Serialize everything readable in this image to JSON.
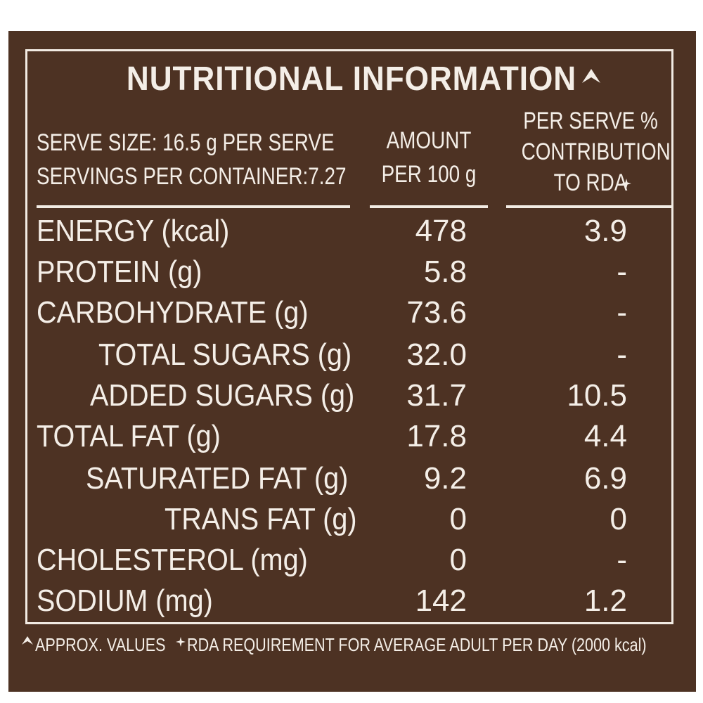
{
  "label": {
    "title": "NUTRITIONAL INFORMATION",
    "serve_size": "SERVE SIZE: 16.5 g PER SERVE",
    "servings": "SERVINGS PER CONTAINER:7.27",
    "col_amount_line1": "AMOUNT",
    "col_amount_line2": "PER 100 g",
    "col_rda_line1": "PER SERVE %",
    "col_rda_line2": "CONTRIBUTION",
    "col_rda_line3": "TO RDA",
    "rows": [
      {
        "name": "ENERGY (kcal)",
        "amount": "478",
        "rda": "3.9"
      },
      {
        "name": "PROTEIN (g)",
        "amount": "5.8",
        "rda": "-"
      },
      {
        "name": "CARBOHYDRATE (g)",
        "amount": "73.6",
        "rda": "-"
      },
      {
        "name": "TOTAL SUGARS (g)",
        "amount": "32.0",
        "rda": "-"
      },
      {
        "name": "ADDED SUGARS (g)",
        "amount": "31.7",
        "rda": "10.5"
      },
      {
        "name": "TOTAL FAT (g)",
        "amount": "17.8",
        "rda": "4.4"
      },
      {
        "name": "SATURATED FAT (g)",
        "amount": "9.2",
        "rda": "6.9"
      },
      {
        "name": "TRANS FAT (g)",
        "amount": "0",
        "rda": "0"
      },
      {
        "name": "CHOLESTEROL (mg)",
        "amount": "0",
        "rda": "-"
      },
      {
        "name": "SODIUM (mg)",
        "amount": "142",
        "rda": "1.2"
      }
    ],
    "footnote_approx": "APPROX. VALUES",
    "footnote_rda": "RDA REQUIREMENT FOR AVERAGE ADULT PER DAY (2000 kcal)"
  },
  "colors": {
    "background": "#4d3223",
    "text": "#f4eee7"
  }
}
